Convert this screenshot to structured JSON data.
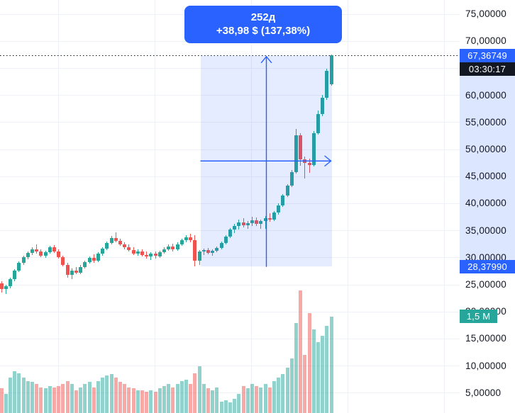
{
  "chart": {
    "measure_tooltip": {
      "duration": "252д",
      "change": "+38,98 $ (137,38%)"
    },
    "price_axis": {
      "ticks": [
        {
          "price": 75,
          "label": "75,00000"
        },
        {
          "price": 70,
          "label": "70,00000"
        },
        {
          "price": 65,
          "label": "65,00000"
        },
        {
          "price": 60,
          "label": "60,00000"
        },
        {
          "price": 55,
          "label": "55,00000"
        },
        {
          "price": 50,
          "label": "50,00000"
        },
        {
          "price": 45,
          "label": "45,00000"
        },
        {
          "price": 40,
          "label": "40,00000"
        },
        {
          "price": 35,
          "label": "35,00000"
        },
        {
          "price": 30,
          "label": "30,00000"
        },
        {
          "price": 25,
          "label": "25,00000"
        },
        {
          "price": 20,
          "label": "20,00000"
        },
        {
          "price": 15,
          "label": "15,00000"
        },
        {
          "price": 10,
          "label": "10,00000"
        },
        {
          "price": 5,
          "label": "5,00000"
        }
      ],
      "current_price_badge": {
        "label": "67,36749",
        "price": 67.36749,
        "color": "#2962ff"
      },
      "countdown_badge": {
        "label": "03:30:17",
        "color": "#131722"
      },
      "measure_low_badge": {
        "label": "28,37990",
        "price": 28.3799,
        "color": "#2962ff"
      },
      "volume_badge": {
        "label": "1,5 M",
        "value_m": 1.5,
        "color": "#26a69a"
      }
    },
    "colors": {
      "up": "#26a69a",
      "down": "#ef5350",
      "vol_up": "rgba(38,166,154,0.5)",
      "vol_down": "rgba(239,83,80,0.5)",
      "accent": "#2962ff",
      "grid": "#eef1f7",
      "text": "#131722",
      "box_fill": "rgba(41,98,255,0.12)",
      "axis_highlight": "rgba(41,98,255,0.16)",
      "dotted_line": "#131722"
    }
  },
  "chart_data": {
    "type": "candlestick",
    "title": "",
    "legend": [],
    "grid": true,
    "y_axis": {
      "side": "right",
      "visible_range": [
        1,
        77
      ],
      "tick_step": 5,
      "decimal_separator": ","
    },
    "current_price": 67.36749,
    "next_bar_countdown": "03:30:17",
    "last_volume_m": 1.5,
    "measure_tool": {
      "price_from": 28.3799,
      "price_to": 67.36749,
      "bars_span_label": "252д",
      "change_abs": 38.98,
      "change_pct": 137.38,
      "start_index": 45,
      "end_index": 75
    },
    "volume_unit": "millions",
    "candles_format": [
      "open",
      "high",
      "low",
      "close",
      "volume_m"
    ],
    "candles": [
      [
        25.3,
        25.6,
        23.6,
        24.2,
        0.38
      ],
      [
        24.2,
        25.0,
        23.3,
        24.7,
        0.3
      ],
      [
        24.7,
        26.3,
        24.4,
        26.0,
        0.55
      ],
      [
        26.0,
        27.9,
        25.7,
        27.6,
        0.65
      ],
      [
        27.6,
        29.3,
        27.3,
        29.0,
        0.62
      ],
      [
        29.0,
        30.4,
        28.7,
        30.1,
        0.55
      ],
      [
        30.1,
        31.2,
        29.7,
        30.9,
        0.5
      ],
      [
        30.9,
        32.0,
        30.5,
        31.6,
        0.48
      ],
      [
        31.6,
        32.4,
        30.8,
        31.1,
        0.45
      ],
      [
        31.1,
        31.5,
        30.1,
        30.4,
        0.4
      ],
      [
        30.4,
        31.3,
        30.0,
        31.0,
        0.38
      ],
      [
        31.0,
        32.2,
        30.7,
        31.9,
        0.42
      ],
      [
        31.9,
        32.3,
        30.9,
        31.2,
        0.4
      ],
      [
        31.2,
        31.6,
        29.8,
        30.1,
        0.42
      ],
      [
        30.1,
        30.4,
        28.4,
        28.7,
        0.45
      ],
      [
        28.7,
        29.0,
        26.3,
        26.8,
        0.5
      ],
      [
        26.8,
        28.0,
        26.1,
        27.6,
        0.45
      ],
      [
        27.6,
        28.3,
        26.9,
        27.2,
        0.35
      ],
      [
        27.2,
        28.6,
        27.0,
        28.3,
        0.4
      ],
      [
        28.3,
        29.5,
        28.0,
        29.2,
        0.45
      ],
      [
        29.2,
        30.3,
        28.9,
        30.0,
        0.48
      ],
      [
        30.0,
        30.6,
        29.1,
        29.4,
        0.4
      ],
      [
        29.4,
        31.0,
        29.2,
        30.7,
        0.5
      ],
      [
        30.7,
        32.0,
        30.4,
        31.7,
        0.55
      ],
      [
        31.7,
        33.0,
        31.4,
        32.7,
        0.58
      ],
      [
        32.7,
        34.0,
        32.4,
        33.6,
        0.6
      ],
      [
        33.6,
        34.7,
        32.8,
        33.1,
        0.55
      ],
      [
        33.1,
        33.5,
        32.2,
        32.5,
        0.48
      ],
      [
        32.5,
        32.9,
        31.6,
        31.9,
        0.45
      ],
      [
        31.9,
        32.4,
        31.1,
        31.4,
        0.4
      ],
      [
        31.4,
        31.9,
        30.5,
        30.8,
        0.38
      ],
      [
        30.8,
        31.5,
        30.4,
        31.2,
        0.35
      ],
      [
        31.2,
        31.6,
        30.2,
        30.5,
        0.35
      ],
      [
        30.5,
        31.1,
        29.8,
        30.2,
        0.33
      ],
      [
        30.2,
        31.0,
        29.6,
        30.7,
        0.35
      ],
      [
        30.7,
        31.2,
        29.9,
        30.3,
        0.33
      ],
      [
        30.3,
        31.3,
        30.0,
        31.0,
        0.38
      ],
      [
        31.0,
        31.9,
        30.7,
        31.6,
        0.42
      ],
      [
        31.6,
        32.4,
        31.3,
        32.1,
        0.45
      ],
      [
        32.1,
        32.6,
        31.2,
        31.5,
        0.4
      ],
      [
        31.5,
        32.8,
        31.3,
        32.5,
        0.45
      ],
      [
        32.5,
        33.5,
        32.2,
        33.2,
        0.5
      ],
      [
        33.2,
        34.1,
        32.9,
        33.8,
        0.52
      ],
      [
        33.8,
        34.4,
        32.9,
        33.3,
        0.45
      ],
      [
        33.3,
        34.2,
        28.4,
        29.5,
        0.62
      ],
      [
        29.5,
        31.4,
        28.6,
        31.1,
        0.72
      ],
      [
        31.1,
        31.7,
        30.5,
        31.4,
        0.45
      ],
      [
        31.4,
        31.8,
        30.6,
        30.9,
        0.38
      ],
      [
        30.9,
        31.6,
        30.4,
        31.3,
        0.35
      ],
      [
        31.3,
        32.1,
        31.0,
        31.8,
        0.4
      ],
      [
        31.8,
        33.0,
        31.5,
        32.7,
        0.18
      ],
      [
        32.7,
        34.2,
        32.4,
        33.9,
        0.2
      ],
      [
        33.9,
        35.5,
        33.6,
        35.2,
        0.16
      ],
      [
        35.2,
        36.3,
        34.5,
        35.8,
        0.22
      ],
      [
        35.8,
        37.0,
        35.2,
        36.5,
        0.3
      ],
      [
        36.5,
        37.3,
        35.6,
        36.0,
        0.42
      ],
      [
        36.0,
        36.8,
        35.3,
        36.4,
        0.38
      ],
      [
        36.4,
        37.6,
        35.8,
        36.9,
        0.45
      ],
      [
        36.9,
        37.4,
        35.9,
        36.3,
        0.42
      ],
      [
        36.3,
        37.1,
        35.4,
        36.8,
        0.4
      ],
      [
        36.8,
        37.7,
        35.3,
        37.3,
        0.45
      ],
      [
        37.3,
        38.2,
        36.6,
        37.0,
        0.4
      ],
      [
        37.0,
        38.6,
        36.8,
        38.3,
        0.5
      ],
      [
        38.3,
        40.0,
        38.0,
        39.7,
        0.55
      ],
      [
        39.7,
        41.8,
        39.4,
        41.5,
        0.6
      ],
      [
        41.5,
        43.6,
        41.2,
        43.3,
        0.7
      ],
      [
        43.3,
        46.2,
        43.0,
        45.8,
        0.85
      ],
      [
        45.8,
        53.8,
        45.5,
        52.6,
        1.4
      ],
      [
        52.6,
        53.0,
        47.0,
        48.2,
        1.9
      ],
      [
        48.2,
        48.7,
        44.6,
        47.5,
        0.9
      ],
      [
        47.5,
        48.3,
        45.7,
        47.1,
        1.55
      ],
      [
        47.1,
        53.4,
        46.8,
        53.0,
        1.3
      ],
      [
        53.0,
        57.2,
        52.7,
        56.6,
        1.1
      ],
      [
        56.6,
        60.1,
        56.2,
        59.5,
        1.2
      ],
      [
        59.5,
        64.9,
        59.2,
        64.5,
        1.35
      ],
      [
        62.0,
        67.5,
        61.8,
        67.37,
        1.5
      ]
    ]
  }
}
